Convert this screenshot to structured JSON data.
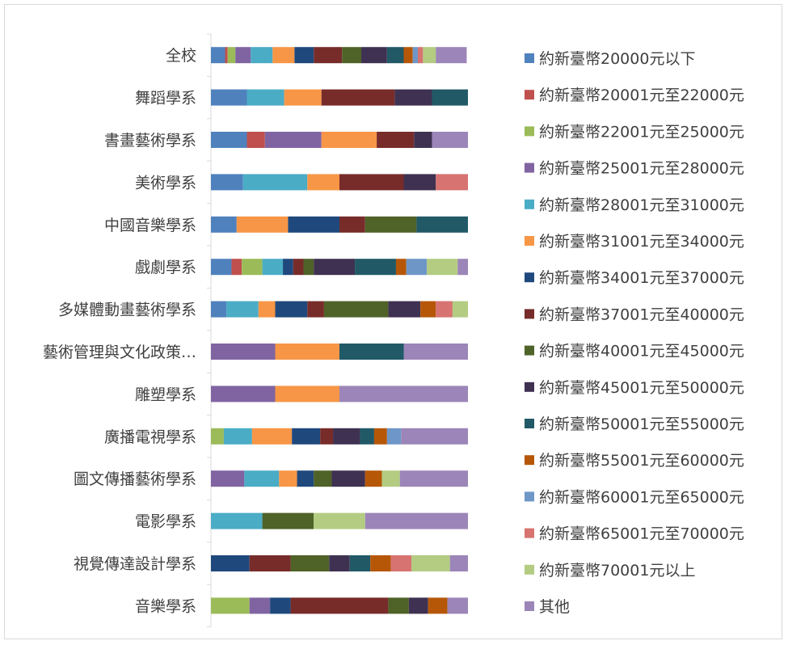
{
  "chart_data": {
    "type": "bar",
    "orientation": "horizontal",
    "stacked": "percent",
    "title": "",
    "xlabel": "",
    "ylabel": "",
    "xlim": [
      0,
      100
    ],
    "x_ticks": [
      "0%",
      "20%",
      "40%",
      "60%",
      "80%",
      "100%"
    ],
    "grid": false,
    "legend_position": "right",
    "categories": [
      "全校",
      "舞蹈學系",
      "書畫藝術學系",
      "美術學系",
      "中國音樂學系",
      "戲劇學系",
      "多媒體動畫藝術學系",
      "藝術管理與文化政策…",
      "雕塑學系",
      "廣播電視學系",
      "圖文傳播藝術學系",
      "電影學系",
      "視覺傳達設計學系",
      "音樂學系"
    ],
    "series": [
      {
        "name": "約新臺幣20000元以下",
        "color": "#4f81bd",
        "values": [
          5.5,
          14,
          14,
          12.5,
          10,
          8,
          6,
          0,
          0,
          0,
          0,
          0,
          0,
          0
        ]
      },
      {
        "name": "約新臺幣20001元至22000元",
        "color": "#c0504d",
        "values": [
          1,
          0,
          7,
          0,
          0,
          4,
          0,
          0,
          0,
          0,
          0,
          0,
          0,
          0
        ]
      },
      {
        "name": "約新臺幣22001元至25000元",
        "color": "#9bbb59",
        "values": [
          3,
          0,
          0,
          0,
          0,
          8,
          0,
          0,
          0,
          5,
          0,
          0,
          0,
          15
        ]
      },
      {
        "name": "約新臺幣25001元至28000元",
        "color": "#8064a2",
        "values": [
          6,
          0,
          22,
          0,
          0,
          0,
          0,
          25,
          25,
          0,
          13,
          0,
          0,
          8
        ]
      },
      {
        "name": "約新臺幣28001元至31000元",
        "color": "#4bacc6",
        "values": [
          8.5,
          14.5,
          0,
          25,
          0,
          8,
          12.5,
          0,
          0,
          11,
          13.5,
          20,
          0,
          0
        ]
      },
      {
        "name": "約新臺幣31001元至34000元",
        "color": "#f79646",
        "values": [
          8.5,
          14.5,
          21.5,
          12.5,
          20,
          0,
          6.5,
          25,
          25,
          15.5,
          7,
          0,
          0,
          0
        ]
      },
      {
        "name": "約新臺幣34001元至37000元",
        "color": "#1f497d",
        "values": [
          7.5,
          0,
          0,
          0,
          20,
          4,
          12.5,
          0,
          0,
          11,
          6.5,
          0,
          15,
          8
        ]
      },
      {
        "name": "約新臺幣37001元至40000元",
        "color": "#772c2a",
        "values": [
          11,
          28.5,
          14.5,
          25,
          10,
          4,
          6.5,
          0,
          0,
          5,
          0,
          0,
          16,
          38
        ]
      },
      {
        "name": "約新臺幣40001元至45000元",
        "color": "#4f6228",
        "values": [
          7.5,
          0,
          0,
          0,
          20,
          4,
          25,
          0,
          0,
          0,
          7,
          20,
          15,
          8
        ]
      },
      {
        "name": "約新臺幣45001元至50000元",
        "color": "#3f3151",
        "values": [
          10,
          14.5,
          7,
          12.5,
          0,
          16,
          12.5,
          0,
          0,
          10.5,
          13,
          0,
          8,
          7.5
        ]
      },
      {
        "name": "約新臺幣50001元至55000元",
        "color": "#215967",
        "values": [
          6.5,
          14,
          0,
          0,
          20,
          16,
          0,
          25,
          0,
          5.5,
          0,
          0,
          8,
          0
        ]
      },
      {
        "name": "約新臺幣55001元至60000元",
        "color": "#b65708",
        "values": [
          3.5,
          0,
          0,
          0,
          0,
          4,
          6,
          0,
          0,
          5,
          6.5,
          0,
          8,
          7.5
        ]
      },
      {
        "name": "約新臺幣60001元至65000元",
        "color": "#6e97c8",
        "values": [
          2,
          0,
          0,
          0,
          0,
          8,
          0,
          0,
          0,
          5.5,
          0,
          0,
          0,
          0
        ]
      },
      {
        "name": "約新臺幣65001元至70000元",
        "color": "#d77370",
        "values": [
          2,
          0,
          0,
          12.5,
          0,
          0,
          6.5,
          0,
          0,
          0,
          0,
          0,
          8,
          0
        ]
      },
      {
        "name": "約新臺幣70001元以上",
        "color": "#b3cc82",
        "values": [
          5,
          0,
          0,
          0,
          0,
          12,
          6,
          0,
          0,
          0,
          7,
          20,
          15,
          0
        ]
      },
      {
        "name": "其他",
        "color": "#9c85b8",
        "values": [
          12,
          0,
          14,
          0,
          0,
          4,
          0,
          25,
          50,
          26,
          26.5,
          40,
          7,
          8
        ]
      }
    ]
  }
}
